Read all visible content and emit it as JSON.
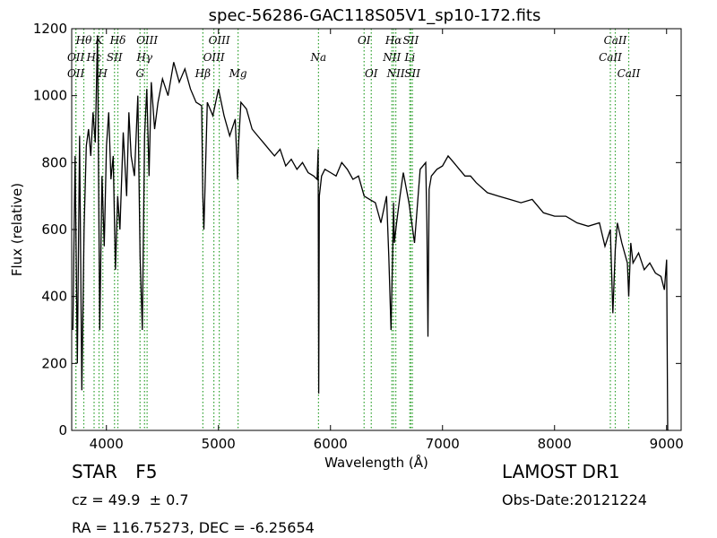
{
  "chart_data": {
    "type": "line",
    "title": "spec-56286-GAC118S05V1_sp10-172.fits",
    "xlabel": "Wavelength (Å)",
    "ylabel": "Flux (relative)",
    "xlim": [
      3690,
      9130
    ],
    "ylim": [
      0,
      1200
    ],
    "xticks": [
      4000,
      5000,
      6000,
      7000,
      8000,
      9000
    ],
    "yticks": [
      0,
      200,
      400,
      600,
      800,
      1000,
      1200
    ],
    "grid": false,
    "series": [
      {
        "x": [
          3700,
          3720,
          3740,
          3760,
          3780,
          3800,
          3820,
          3840,
          3860,
          3880,
          3900,
          3920,
          3940,
          3960,
          3980,
          4000,
          4020,
          4040,
          4060,
          4080,
          4100,
          4120,
          4150,
          4180,
          4200,
          4220,
          4250,
          4280,
          4300,
          4320,
          4340,
          4360,
          4380,
          4400,
          4430,
          4460,
          4500,
          4550,
          4600,
          4650,
          4700,
          4750,
          4800,
          4850,
          4860,
          4870,
          4900,
          4950,
          5000,
          5050,
          5100,
          5150,
          5170,
          5180,
          5200,
          5250,
          5300,
          5350,
          5400,
          5450,
          5500,
          5550,
          5600,
          5650,
          5700,
          5750,
          5800,
          5850,
          5880,
          5890,
          5895,
          5900,
          5920,
          5950,
          6000,
          6050,
          6100,
          6150,
          6200,
          6250,
          6300,
          6350,
          6400,
          6450,
          6500,
          6520,
          6540,
          6560,
          6563,
          6570,
          6590,
          6620,
          6650,
          6700,
          6750,
          6800,
          6850,
          6860,
          6870,
          6880,
          6900,
          6950,
          7000,
          7050,
          7100,
          7150,
          7200,
          7250,
          7300,
          7400,
          7500,
          7600,
          7700,
          7800,
          7900,
          8000,
          8100,
          8200,
          8300,
          8400,
          8450,
          8498,
          8520,
          8542,
          8560,
          8600,
          8650,
          8662,
          8680,
          8700,
          8750,
          8800,
          8850,
          8900,
          8950,
          8980,
          9000,
          9010,
          9020
        ],
        "y": [
          300,
          820,
          200,
          880,
          120,
          600,
          850,
          900,
          820,
          950,
          860,
          1180,
          300,
          760,
          550,
          850,
          950,
          750,
          820,
          480,
          700,
          600,
          890,
          700,
          950,
          820,
          760,
          1000,
          520,
          300,
          880,
          1020,
          760,
          1040,
          900,
          980,
          1050,
          1000,
          1100,
          1040,
          1080,
          1020,
          980,
          970,
          700,
          600,
          980,
          940,
          1020,
          940,
          880,
          930,
          750,
          860,
          980,
          960,
          900,
          880,
          860,
          840,
          820,
          840,
          790,
          810,
          780,
          800,
          770,
          760,
          750,
          840,
          110,
          700,
          760,
          780,
          770,
          760,
          800,
          780,
          750,
          760,
          700,
          690,
          680,
          620,
          700,
          520,
          300,
          620,
          680,
          560,
          620,
          700,
          770,
          680,
          560,
          780,
          800,
          620,
          280,
          720,
          760,
          780,
          790,
          820,
          800,
          780,
          760,
          760,
          740,
          710,
          700,
          690,
          680,
          690,
          650,
          640,
          640,
          620,
          610,
          620,
          550,
          600,
          350,
          540,
          620,
          560,
          500,
          400,
          560,
          500,
          530,
          480,
          500,
          470,
          460,
          420,
          510,
          0,
          0
        ]
      }
    ],
    "line_markers": [
      {
        "name": "Hθ",
        "wavelength": 3798,
        "row": 1
      },
      {
        "name": "K",
        "wavelength": 3934,
        "row": 1
      },
      {
        "name": "Hδ",
        "wavelength": 4102,
        "row": 1
      },
      {
        "name": "OIII",
        "wavelength": 4363,
        "row": 1
      },
      {
        "name": "OIII",
        "wavelength": 5007,
        "row": 1
      },
      {
        "name": "OI",
        "wavelength": 6300,
        "row": 1
      },
      {
        "name": "Hα",
        "wavelength": 6563,
        "row": 1
      },
      {
        "name": "SII",
        "wavelength": 6717,
        "row": 1
      },
      {
        "name": "CaII",
        "wavelength": 8542,
        "row": 1
      },
      {
        "name": "OII",
        "wavelength": 3727,
        "row": 2
      },
      {
        "name": "Hε",
        "wavelength": 3890,
        "row": 2
      },
      {
        "name": "SII",
        "wavelength": 4072,
        "row": 2
      },
      {
        "name": "Hγ",
        "wavelength": 4340,
        "row": 2
      },
      {
        "name": "OIII",
        "wavelength": 4959,
        "row": 2
      },
      {
        "name": "NII",
        "wavelength": 6548,
        "row": 2
      },
      {
        "name": "Li",
        "wavelength": 6708,
        "row": 2
      },
      {
        "name": "CaII",
        "wavelength": 8498,
        "row": 2
      },
      {
        "name": "OII",
        "wavelength": 3727,
        "row": 3
      },
      {
        "name": "H",
        "wavelength": 3968,
        "row": 3
      },
      {
        "name": "G",
        "wavelength": 4300,
        "row": 3
      },
      {
        "name": "Hβ",
        "wavelength": 4861,
        "row": 3
      },
      {
        "name": "Mg",
        "wavelength": 5175,
        "row": 3
      },
      {
        "name": "Na",
        "wavelength": 5893,
        "row": 2
      },
      {
        "name": "OI",
        "wavelength": 6364,
        "row": 3
      },
      {
        "name": "NII",
        "wavelength": 6583,
        "row": 3
      },
      {
        "name": "SII",
        "wavelength": 6731,
        "row": 3
      },
      {
        "name": "CaII",
        "wavelength": 8662,
        "row": 3
      }
    ],
    "marker_color": "#2ca02c",
    "line_color": "#000000"
  },
  "info": {
    "object_class": "STAR",
    "subclass": "F5",
    "cz_text": "cz = 49.9  ± 0.7",
    "coords_text": "RA = 116.75273, DEC = -6.25654",
    "survey": "LAMOST DR1",
    "obs_date": "Obs-Date:20121224"
  }
}
